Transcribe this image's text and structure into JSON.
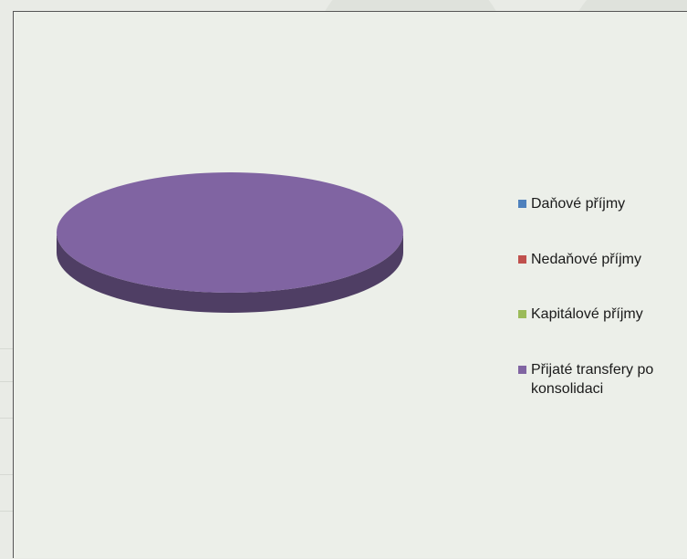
{
  "chart_data": {
    "type": "pie",
    "title": "",
    "style": "3d",
    "categories": [
      "Daňové příjmy",
      "Nedaňové příjmy",
      "Kapitálové příjmy",
      "Přijaté transfery po konsolidaci"
    ],
    "values": [
      0,
      0,
      0,
      100
    ],
    "colors": [
      "#4f81bd",
      "#c0504d",
      "#9bbb59",
      "#8064a2"
    ],
    "legend_position": "right"
  }
}
